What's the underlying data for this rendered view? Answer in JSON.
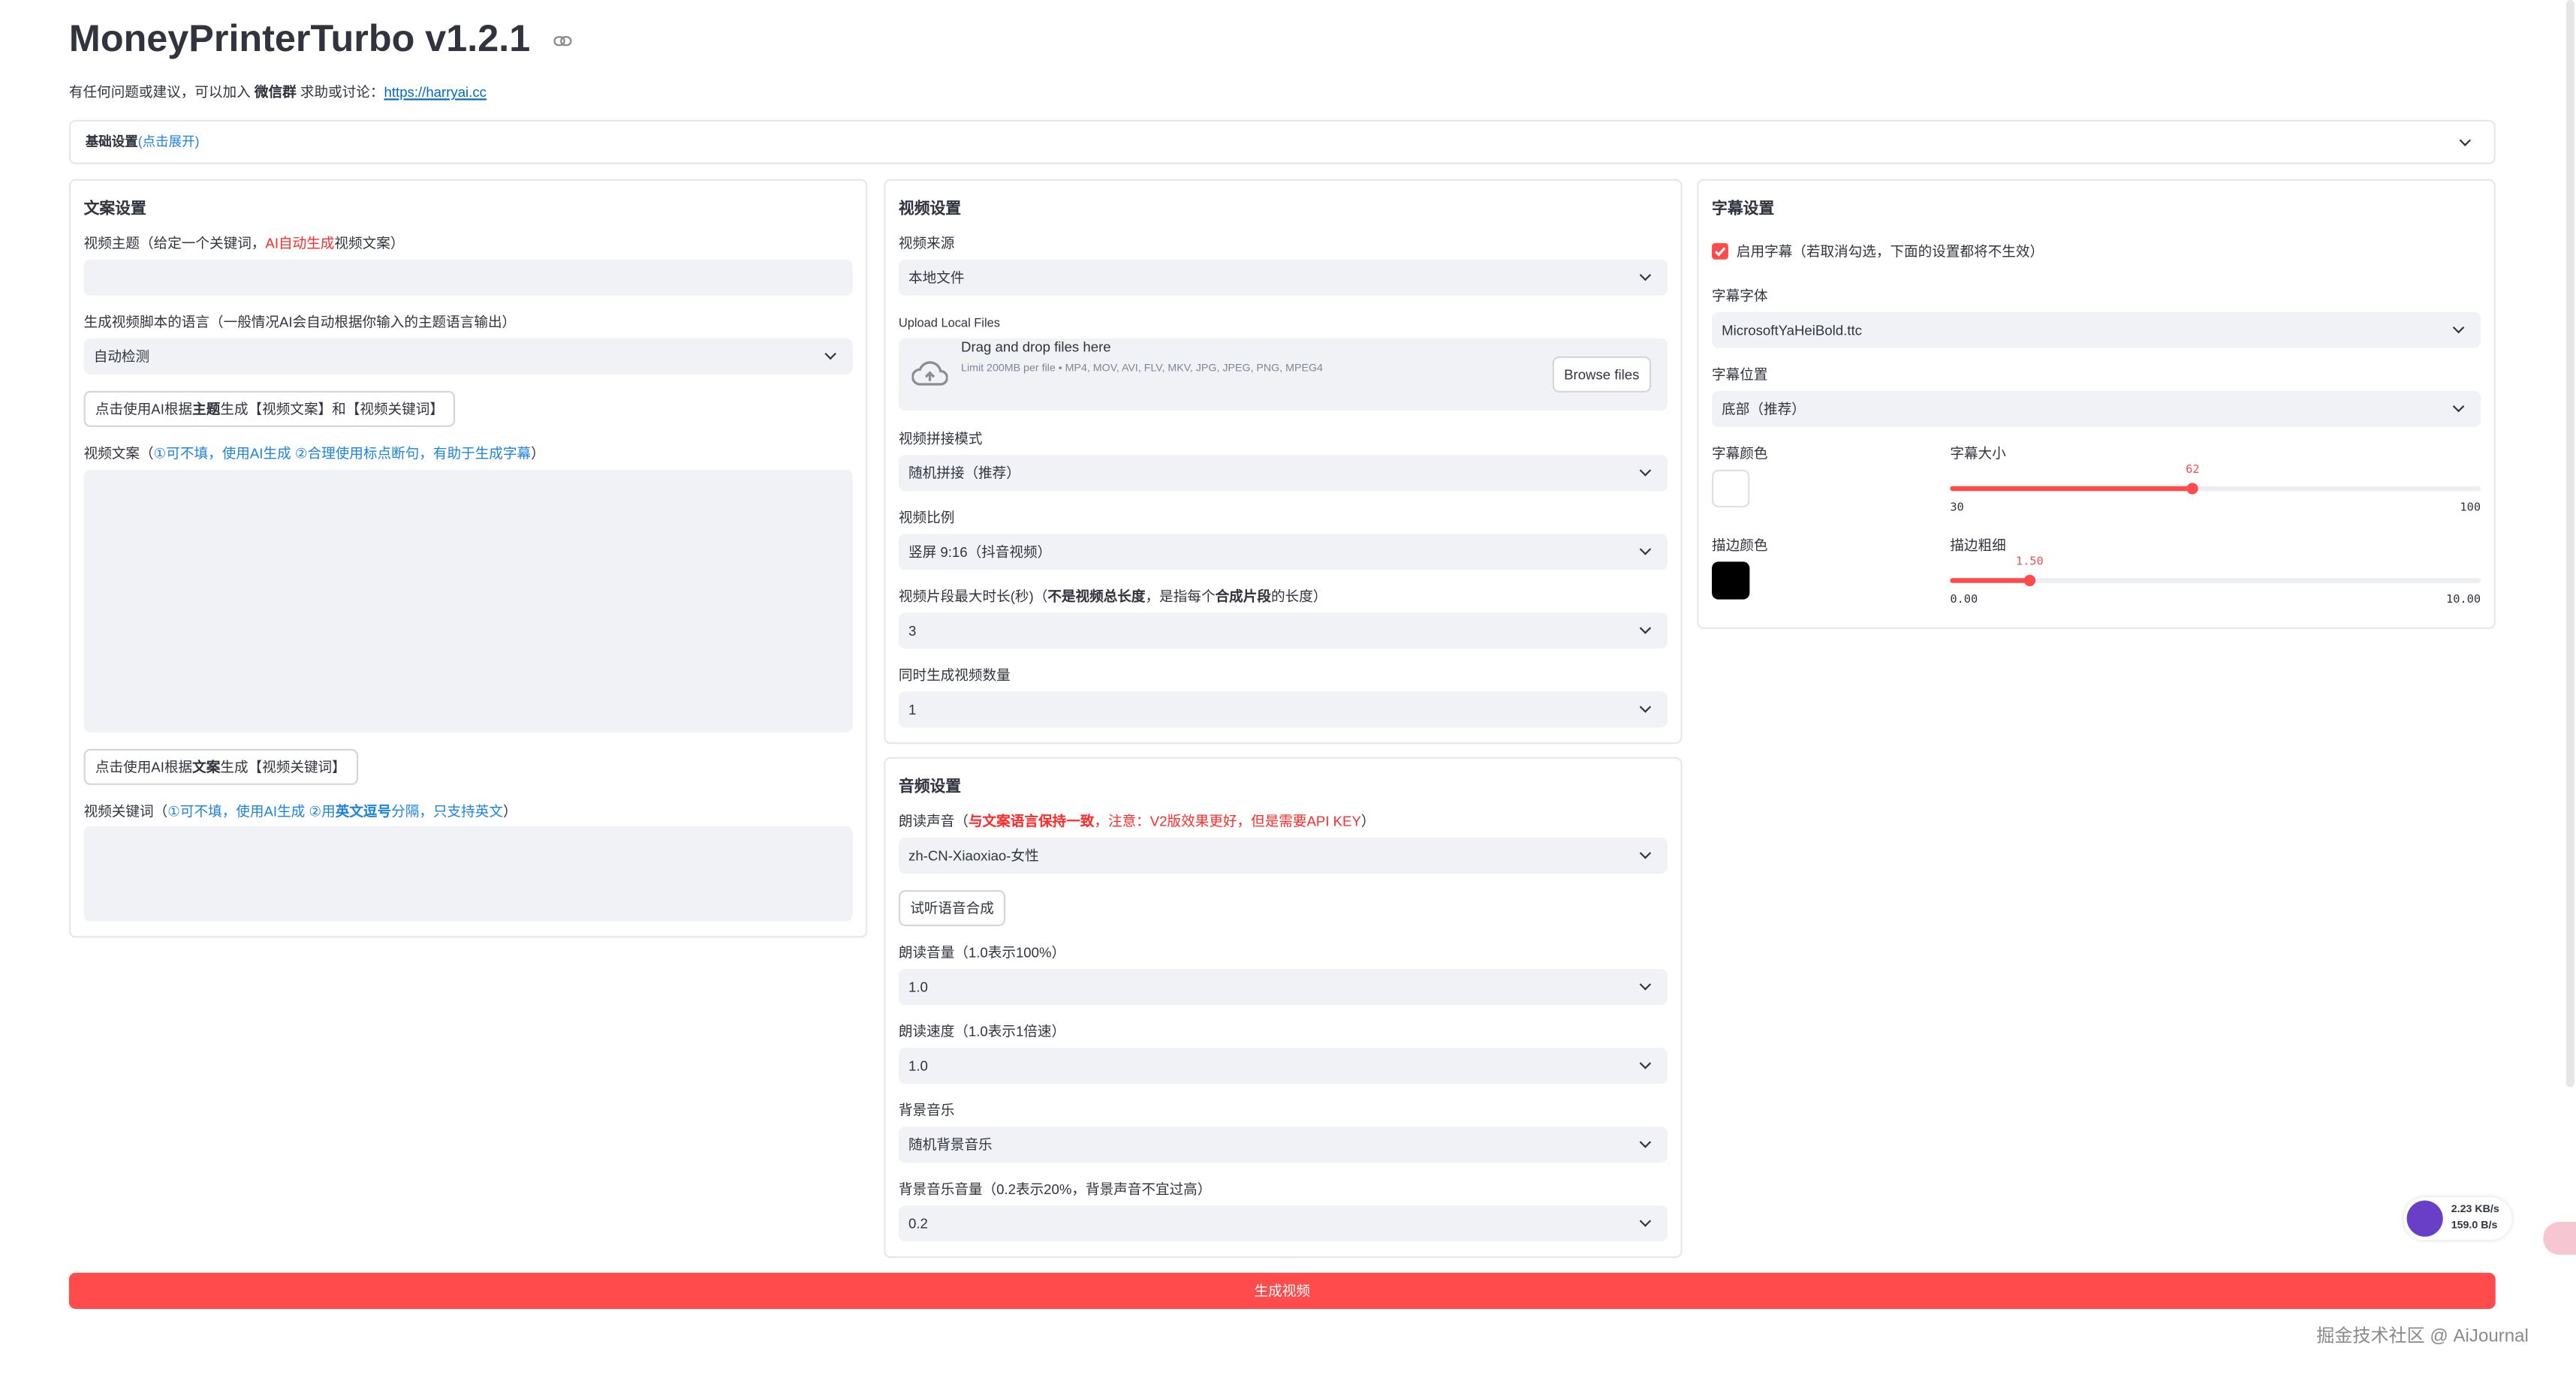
{
  "header": {
    "title": "MoneyPrinterTurbo v1.2.1",
    "intro": [
      "有任何问题或建议，可以加入 ",
      "微信群",
      " 求助或讨论：",
      "https://harryai.cc"
    ]
  },
  "basic_settings": {
    "title": "基础设置",
    "hint": "(点击展开)"
  },
  "script_settings": {
    "heading": "文案设置",
    "subject_label": [
      "视频主题（给定一个关键词，",
      "AI自动生成",
      "视频文案）"
    ],
    "language_label": "生成视频脚本的语言（一般情况AI会自动根据你输入的主题语言输出）",
    "language_value": "自动检测",
    "generate_script_button": [
      "点击使用AI根据",
      "主题",
      "生成【视频文案】和【视频关键词】"
    ],
    "script_label": [
      "视频文案（",
      "①可不填，使用AI生成 ②合理使用标点断句，有助于生成字幕",
      "）"
    ],
    "generate_terms_button": [
      "点击使用AI根据",
      "文案",
      "生成【视频关键词】"
    ],
    "terms_label": [
      "视频关键词（",
      "①可不填，使用AI生成 ②用",
      "英文逗号",
      "分隔，只支持英文",
      "）"
    ]
  },
  "video_settings": {
    "heading": "视频设置",
    "source": {
      "label": "视频来源",
      "value": "本地文件"
    },
    "upload": {
      "label": "Upload Local Files",
      "title": "Drag and drop files here",
      "limit": "Limit 200MB per file • MP4, MOV, AVI, FLV, MKV, JPG, JPEG, PNG, MPEG4",
      "button": "Browse files"
    },
    "concat": {
      "label": "视频拼接模式",
      "value": "随机拼接（推荐）"
    },
    "aspect": {
      "label": "视频比例",
      "value": "竖屏 9:16（抖音视频）"
    },
    "clip_duration": {
      "label": [
        "视频片段最大时长(秒)（",
        "不是视频总长度",
        "，是指每个",
        "合成片段",
        "的长度）"
      ],
      "value": "3"
    },
    "count": {
      "label": "同时生成视频数量",
      "value": "1"
    }
  },
  "audio_settings": {
    "heading": "音频设置",
    "voice": {
      "label": [
        "朗读声音（",
        "与文案语言保持一致",
        "，注意：V2版效果更好，但是需要API KEY",
        "）"
      ],
      "value": "zh-CN-Xiaoxiao-女性"
    },
    "preview_button": "试听语音合成",
    "volume": {
      "label": "朗读音量（1.0表示100%）",
      "value": "1.0"
    },
    "rate": {
      "label": "朗读速度（1.0表示1倍速）",
      "value": "1.0"
    },
    "bgm": {
      "label": "背景音乐",
      "value": "随机背景音乐"
    },
    "bgm_volume": {
      "label": "背景音乐音量（0.2表示20%，背景声音不宜过高）",
      "value": "0.2"
    }
  },
  "subtitle_settings": {
    "heading": "字幕设置",
    "enable": "启用字幕（若取消勾选，下面的设置都将不生效）",
    "font": {
      "label": "字幕字体",
      "value": "MicrosoftYaHeiBold.ttc"
    },
    "position": {
      "label": "字幕位置",
      "value": "底部（推荐）"
    },
    "color_label": "字幕颜色",
    "size": {
      "label": "字幕大小",
      "min": 30,
      "max": 100,
      "value": 62
    },
    "stroke_color_label": "描边颜色",
    "stroke_width": {
      "label": "描边粗细",
      "min": {
        "value": 0,
        "label": "0.00"
      },
      "max": {
        "value": 10,
        "label": "10.00"
      },
      "value": {
        "value": 1.5,
        "label": "1.50"
      }
    }
  },
  "generate_button": "生成视频",
  "network": {
    "down": "2.23 KB/s",
    "up": "159.0 B/s"
  },
  "watermark": "掘金技术社区 @ AiJournal"
}
